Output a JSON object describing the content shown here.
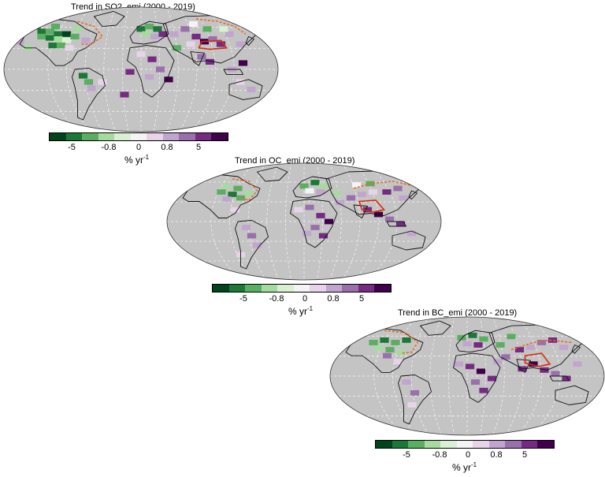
{
  "colors": {
    "ocean_land_gray": "#c4c4c4",
    "coast": "#111111",
    "grid": "#f2f2f2",
    "outline_red": "#d82a0a",
    "outline_orange": "#ec6a1c",
    "scale": [
      "#00441b",
      "#1b7837",
      "#5aae61",
      "#a6dba0",
      "#d9f0d3",
      "#f4f4f4",
      "#e7d4e8",
      "#c2a5cf",
      "#9970ab",
      "#762a83",
      "#40004b"
    ]
  },
  "colorbar": {
    "ticks": [
      "-5",
      "-0.8",
      "0",
      "0.8",
      "5"
    ],
    "unit": "% yr",
    "unit_exp": "-1"
  },
  "panels": [
    {
      "id": "so2",
      "title": "Trend in SO2_emi (2000 - 2019)"
    },
    {
      "id": "oc",
      "title": "Trend in OC_emi (2000 - 2019)"
    },
    {
      "id": "bc",
      "title": "Trend in BC_emi (2000 - 2019)"
    }
  ]
}
